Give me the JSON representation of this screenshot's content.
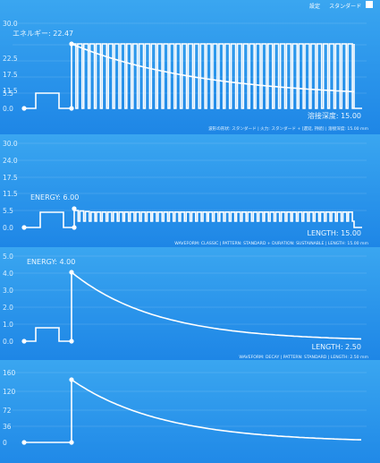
{
  "header": {
    "items": [
      "設定",
      "スタンダード"
    ]
  },
  "panels": [
    {
      "id": "p1",
      "energy_label": "エネルギー: 22.47",
      "length_label": "溶接深度: 15.00",
      "footer": "波形の形状: スタンダード | 火力: スタンダード + [遅延, 持続] | 溶接深度: 15.00 mm",
      "y_ticks": [
        "30.0",
        "22.5",
        "17.5",
        "11.5",
        "5.5",
        "0.0"
      ],
      "y_values": [
        30,
        22.5,
        17.5,
        11.5,
        5.5,
        0
      ]
    },
    {
      "id": "p2",
      "energy_label": "ENERGY: 6.00",
      "length_label": "LENGTH: 15.00",
      "footer": "WAVEFORM: CLASSIC | PATTERN: STANDARD + DURATION: SUSTAINABLE | LENGTH: 15.00 mm",
      "y_ticks": [
        "30.0",
        "24.0",
        "17.5",
        "11.5",
        "5.5",
        "0.0"
      ],
      "y_values": [
        30,
        24,
        17.5,
        11.5,
        5.5,
        0
      ]
    },
    {
      "id": "p3",
      "energy_label": "ENERGY: 4.00",
      "length_label": "LENGTH: 2.50",
      "footer": "WAVEFORM: DECAY | PATTERN: STANDARD | LENGTH: 2.50 mm",
      "y_ticks": [
        "5.0",
        "4.0",
        "3.0",
        "2.0",
        "1.0",
        "0.0"
      ],
      "y_values": [
        5,
        4,
        3,
        2,
        1,
        0
      ]
    },
    {
      "id": "p4",
      "y_ticks": [
        "160",
        "120",
        "72",
        "36",
        "0"
      ],
      "y_values": [
        160,
        120,
        72,
        36,
        0
      ]
    }
  ],
  "colors": {
    "bg_top": "#37a3ef",
    "bg_bottom": "#1f86e6",
    "line": "#ffffff"
  }
}
